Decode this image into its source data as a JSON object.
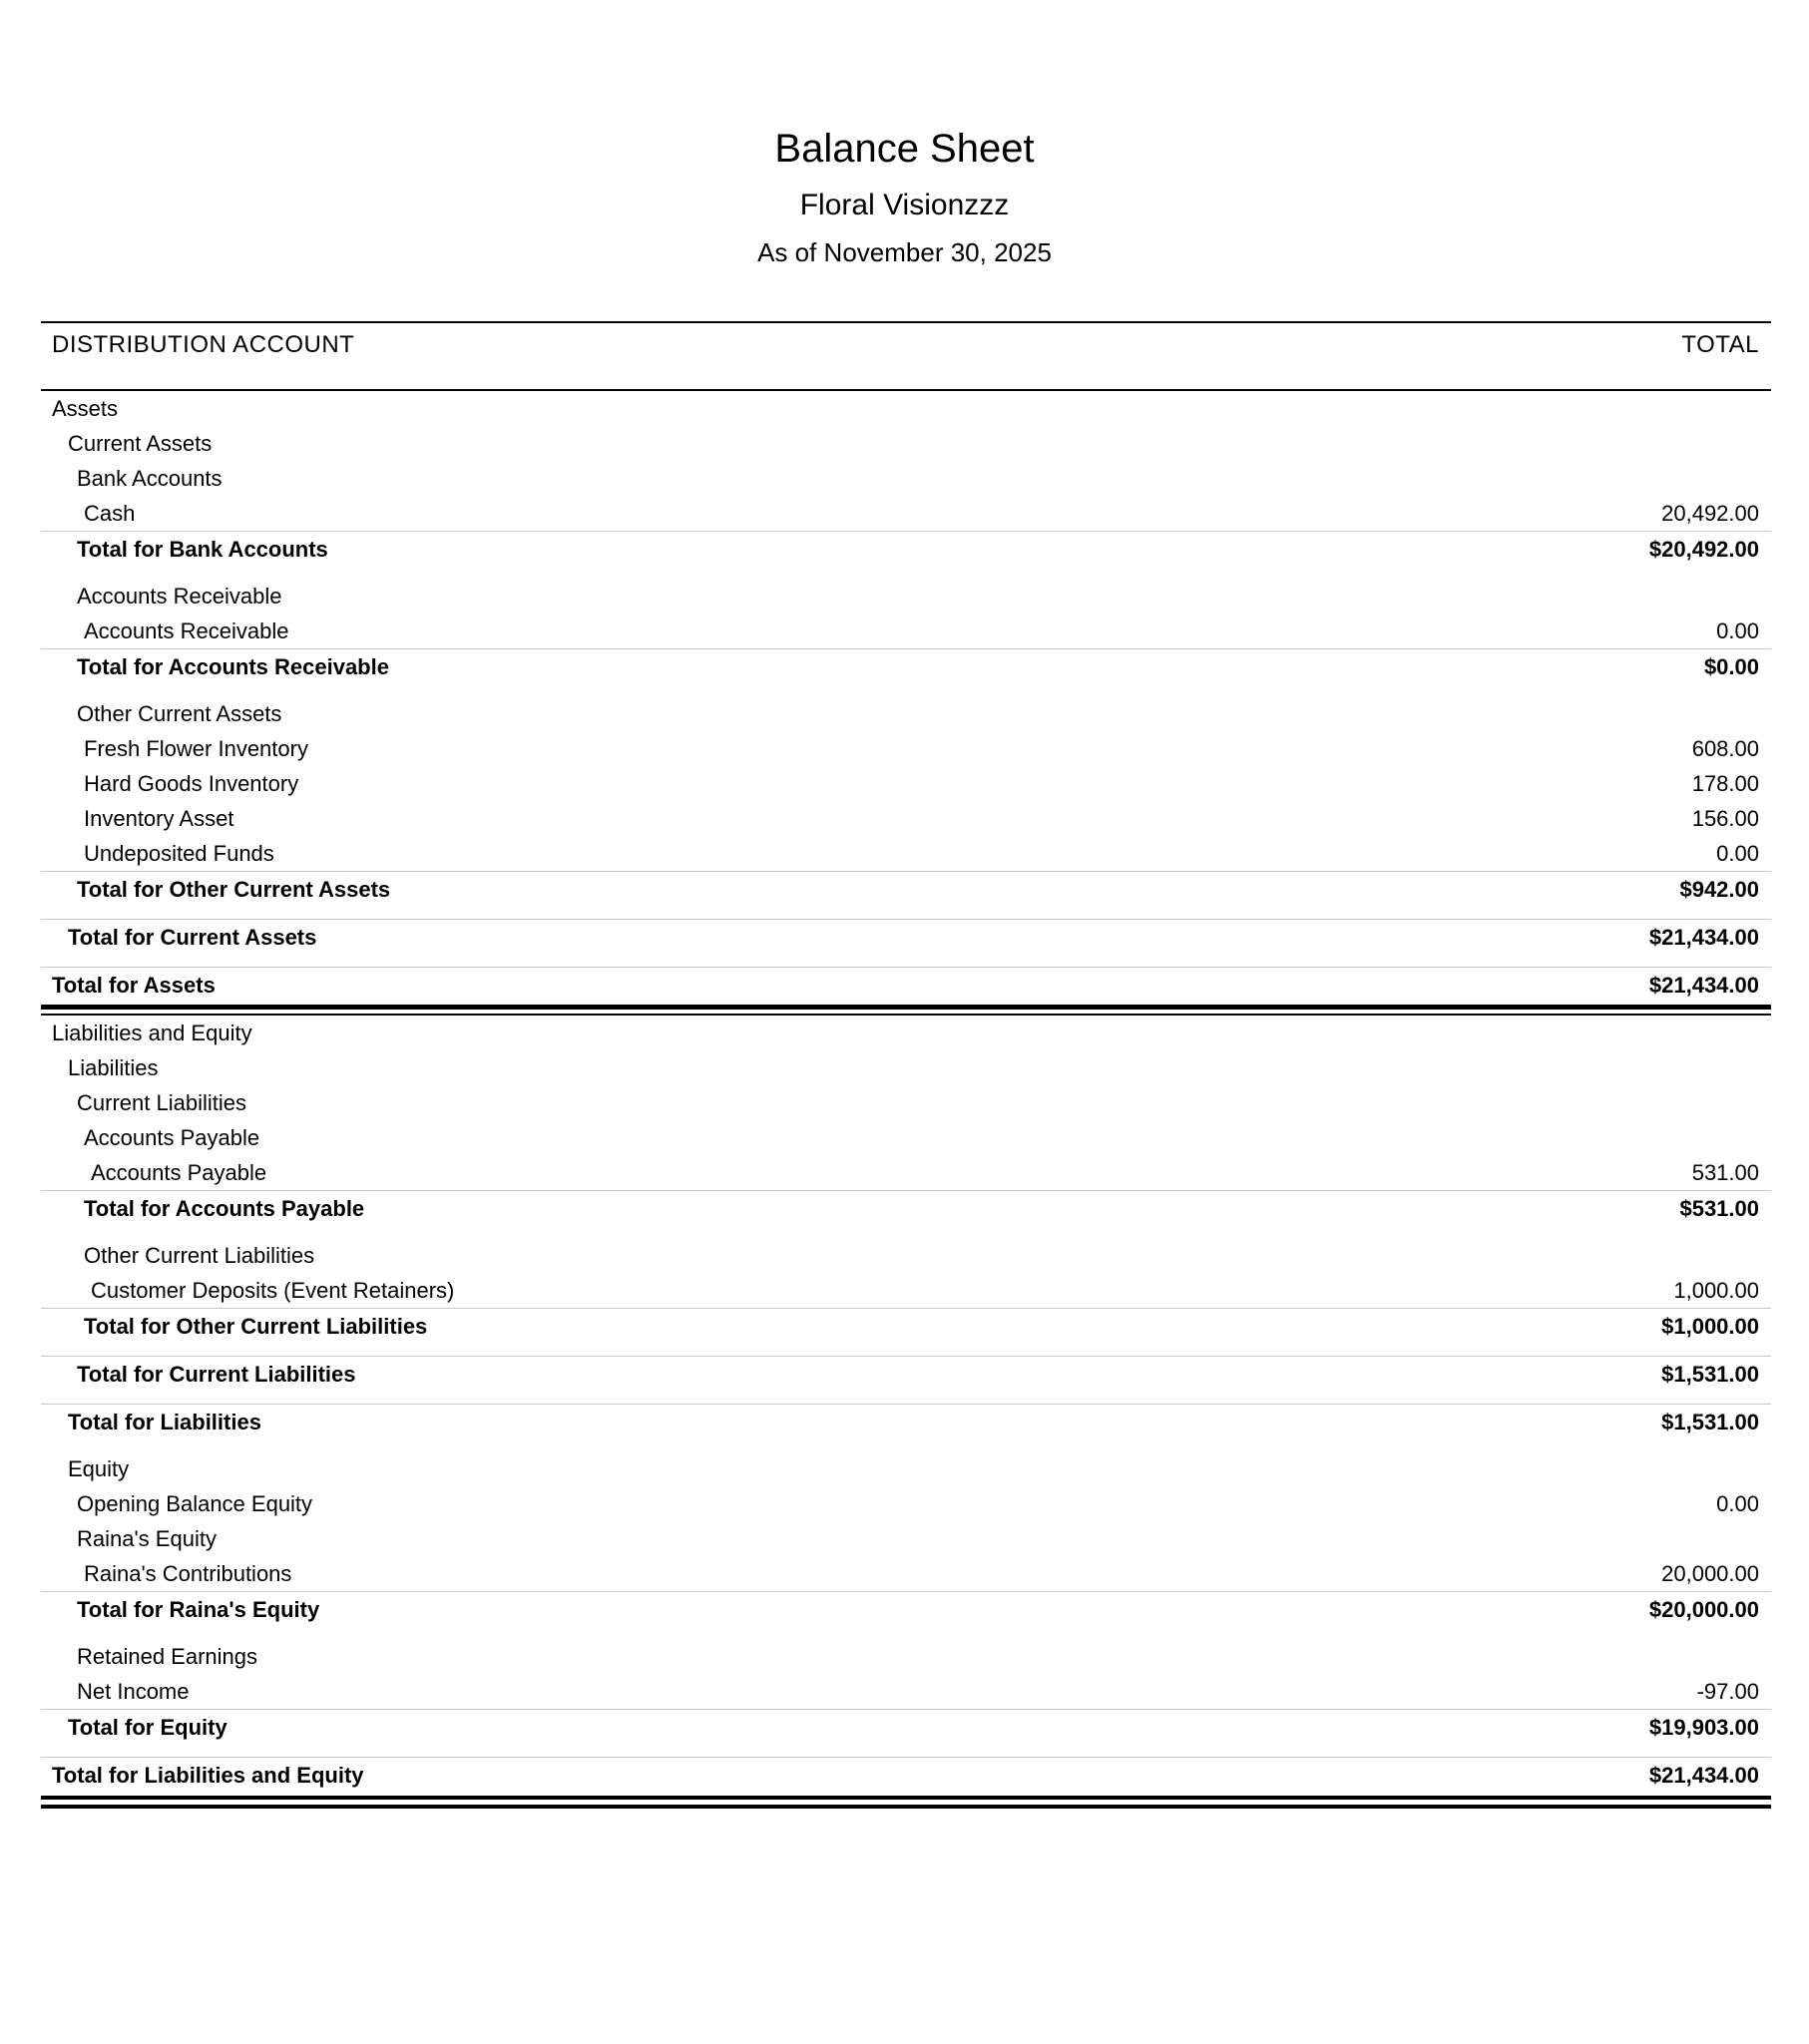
{
  "report": {
    "title": "Balance Sheet",
    "company": "Floral Visionzzz",
    "as_of": "As of November 30, 2025"
  },
  "table": {
    "columns": {
      "account": "DISTRIBUTION ACCOUNT",
      "total": "TOTAL"
    },
    "rows": [
      {
        "label": "Assets",
        "value": "",
        "level": 0,
        "type": "group",
        "gap": false
      },
      {
        "label": "Current Assets",
        "value": "",
        "level": 1,
        "type": "group",
        "gap": false
      },
      {
        "label": "Bank Accounts",
        "value": "",
        "level": 2,
        "type": "group",
        "gap": false
      },
      {
        "label": "Cash",
        "value": "20,492.00",
        "level": 3,
        "type": "item",
        "gap": false
      },
      {
        "label": "Total for Bank Accounts",
        "value": "$20,492.00",
        "level": 2,
        "type": "total",
        "gap": false
      },
      {
        "label": "Accounts Receivable",
        "value": "",
        "level": 2,
        "type": "group",
        "gap": true
      },
      {
        "label": "Accounts Receivable",
        "value": "0.00",
        "level": 3,
        "type": "item",
        "gap": false
      },
      {
        "label": "Total for Accounts Receivable",
        "value": "$0.00",
        "level": 2,
        "type": "total",
        "gap": false
      },
      {
        "label": "Other Current Assets",
        "value": "",
        "level": 2,
        "type": "group",
        "gap": true
      },
      {
        "label": "Fresh Flower Inventory",
        "value": "608.00",
        "level": 3,
        "type": "item",
        "gap": false
      },
      {
        "label": "Hard Goods Inventory",
        "value": "178.00",
        "level": 3,
        "type": "item",
        "gap": false
      },
      {
        "label": "Inventory Asset",
        "value": "156.00",
        "level": 3,
        "type": "item",
        "gap": false
      },
      {
        "label": "Undeposited Funds",
        "value": "0.00",
        "level": 3,
        "type": "item",
        "gap": false
      },
      {
        "label": "Total for Other Current Assets",
        "value": "$942.00",
        "level": 2,
        "type": "total",
        "gap": false
      },
      {
        "label": "Total for Current Assets",
        "value": "$21,434.00",
        "level": 1,
        "type": "total",
        "gap": true
      },
      {
        "label": "Total for Assets",
        "value": "$21,434.00",
        "level": 0,
        "type": "total",
        "gap": true
      },
      {
        "label": "",
        "value": "",
        "level": 0,
        "type": "double-rule-mid",
        "gap": false
      },
      {
        "label": "Liabilities and Equity",
        "value": "",
        "level": 0,
        "type": "group",
        "gap": false
      },
      {
        "label": "Liabilities",
        "value": "",
        "level": 1,
        "type": "group",
        "gap": false
      },
      {
        "label": "Current Liabilities",
        "value": "",
        "level": 2,
        "type": "group",
        "gap": false
      },
      {
        "label": "Accounts Payable",
        "value": "",
        "level": 3,
        "type": "group",
        "gap": false
      },
      {
        "label": "Accounts Payable",
        "value": "531.00",
        "level": 4,
        "type": "item",
        "gap": false
      },
      {
        "label": "Total for Accounts Payable",
        "value": "$531.00",
        "level": 3,
        "type": "total",
        "gap": false
      },
      {
        "label": "Other Current Liabilities",
        "value": "",
        "level": 3,
        "type": "group",
        "gap": true
      },
      {
        "label": "Customer Deposits (Event Retainers)",
        "value": "1,000.00",
        "level": 4,
        "type": "item",
        "gap": false
      },
      {
        "label": "Total for Other Current Liabilities",
        "value": "$1,000.00",
        "level": 3,
        "type": "total",
        "gap": false
      },
      {
        "label": "Total for Current Liabilities",
        "value": "$1,531.00",
        "level": 2,
        "type": "total",
        "gap": true
      },
      {
        "label": "Total for Liabilities",
        "value": "$1,531.00",
        "level": 1,
        "type": "total",
        "gap": true
      },
      {
        "label": "Equity",
        "value": "",
        "level": 1,
        "type": "group",
        "gap": true
      },
      {
        "label": "Opening Balance Equity",
        "value": "0.00",
        "level": 2,
        "type": "item",
        "gap": false
      },
      {
        "label": "Raina's Equity",
        "value": "",
        "level": 2,
        "type": "group",
        "gap": false
      },
      {
        "label": "Raina's Contributions",
        "value": "20,000.00",
        "level": 3,
        "type": "item",
        "gap": false
      },
      {
        "label": "Total for Raina's Equity",
        "value": "$20,000.00",
        "level": 2,
        "type": "total",
        "gap": false
      },
      {
        "label": "Retained Earnings",
        "value": "",
        "level": 2,
        "type": "group",
        "gap": true
      },
      {
        "label": "Net Income",
        "value": "-97.00",
        "level": 2,
        "type": "item",
        "gap": false
      },
      {
        "label": "Total for Equity",
        "value": "$19,903.00",
        "level": 1,
        "type": "total",
        "gap": false
      },
      {
        "label": "Total for Liabilities and Equity",
        "value": "$21,434.00",
        "level": 0,
        "type": "total",
        "gap": true
      },
      {
        "label": "",
        "value": "",
        "level": 0,
        "type": "double-rule-bottom",
        "gap": false
      }
    ]
  }
}
